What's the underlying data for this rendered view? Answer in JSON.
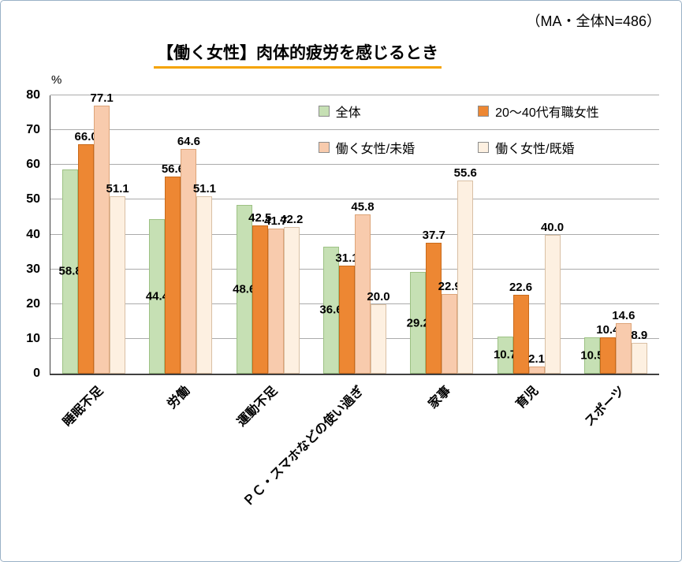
{
  "header": {
    "note": "（MA・全体N=486）"
  },
  "chart_data": {
    "type": "bar",
    "title": "【働く女性】肉体的疲労を感じるとき",
    "y_unit": "%",
    "ylim": [
      0,
      80
    ],
    "yticks": [
      0,
      10,
      20,
      30,
      40,
      50,
      60,
      70,
      80
    ],
    "grid": true,
    "legend_position": "top-right-inside",
    "categories": [
      "睡眠不足",
      "労働",
      "運動不足",
      "ＰＣ・スマホなどの使い過ぎ",
      "家事",
      "育児",
      "スポーツ"
    ],
    "series": [
      {
        "name": "全体",
        "color": "#c6e0b4",
        "border": "#9dc184",
        "label_placement": "inside-center",
        "values": [
          58.8,
          44.4,
          48.6,
          36.6,
          29.2,
          10.7,
          10.5
        ]
      },
      {
        "name": "20～40代有職女性",
        "color": "#ed8733",
        "border": "#c96a1a",
        "label_placement": "outside-end",
        "values": [
          66.0,
          56.6,
          42.5,
          31.1,
          37.7,
          22.6,
          10.4
        ]
      },
      {
        "name": "働く女性/未婚",
        "color": "#f8cbad",
        "border": "#dda478",
        "label_placement": "outside-end",
        "values": [
          77.1,
          64.6,
          41.7,
          45.8,
          22.9,
          2.1,
          14.6
        ]
      },
      {
        "name": "働く女性/既婚",
        "color": "#fdf0e1",
        "border": "#d9c0a5",
        "label_placement": "outside-end",
        "values": [
          51.1,
          51.1,
          42.2,
          20.0,
          55.6,
          40.0,
          8.9
        ]
      }
    ]
  }
}
